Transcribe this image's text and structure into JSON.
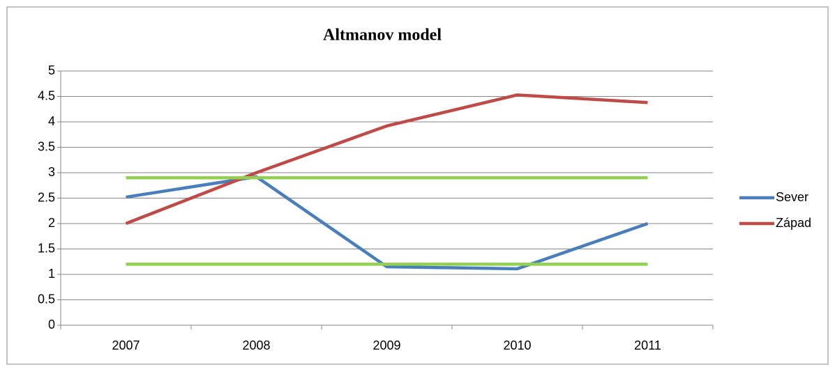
{
  "chart_data": {
    "type": "line",
    "title": "Altmanov model",
    "categories": [
      "2007",
      "2008",
      "2009",
      "2010",
      "2011"
    ],
    "series": [
      {
        "name": "Sever",
        "color": "#4a7ebb",
        "values": [
          2.52,
          2.92,
          1.15,
          1.11,
          2.0
        ]
      },
      {
        "name": "Západ",
        "color": "#be4b48",
        "values": [
          2.0,
          3.0,
          3.92,
          4.53,
          4.38
        ]
      },
      {
        "color": "#92d050",
        "values": [
          2.9,
          2.9,
          2.9,
          2.9,
          2.9
        ]
      },
      {
        "color": "#92d050",
        "values": [
          1.2,
          1.2,
          1.2,
          1.2,
          1.2
        ]
      }
    ],
    "ylim": [
      0,
      5
    ],
    "yticks": [
      0,
      0.5,
      1,
      1.5,
      2,
      2.5,
      3,
      3.5,
      4,
      4.5,
      5
    ],
    "grid": true,
    "legend": "right"
  }
}
